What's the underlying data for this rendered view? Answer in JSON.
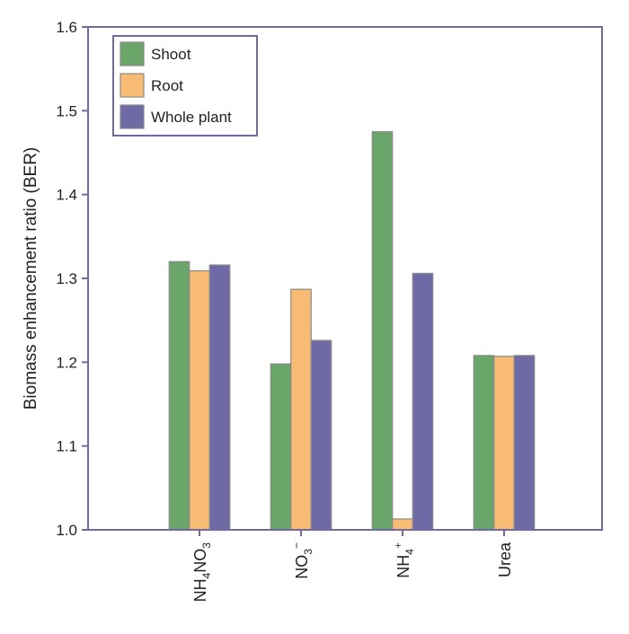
{
  "chart_data": {
    "type": "bar",
    "ylabel": "Biomass enhancement ratio (BER)",
    "ylim": [
      1.0,
      1.6
    ],
    "yticks": [
      "1.0",
      "1.1",
      "1.2",
      "1.3",
      "1.4",
      "1.5",
      "1.6"
    ],
    "categories": [
      {
        "main": "NH",
        "sub": "4",
        "main2": "NO",
        "sub2": "3",
        "sup": ""
      },
      {
        "main": "NO",
        "sub": "3",
        "main2": "",
        "sub2": "",
        "sup": "−"
      },
      {
        "main": "NH",
        "sub": "4",
        "main2": "",
        "sub2": "",
        "sup": "+"
      },
      {
        "main": "Urea",
        "sub": "",
        "main2": "",
        "sub2": "",
        "sup": ""
      }
    ],
    "series": [
      {
        "name": "Shoot",
        "color": "#6aa66a",
        "values": [
          1.32,
          1.198,
          1.475,
          1.208
        ]
      },
      {
        "name": "Root",
        "color": "#f7bb74",
        "values": [
          1.309,
          1.287,
          1.013,
          1.207
        ]
      },
      {
        "name": "Whole plant",
        "color": "#6f6aa6",
        "values": [
          1.316,
          1.226,
          1.306,
          1.208
        ]
      }
    ],
    "grid": false,
    "legend": "top-left",
    "frame_color": "#6f6aa6"
  }
}
